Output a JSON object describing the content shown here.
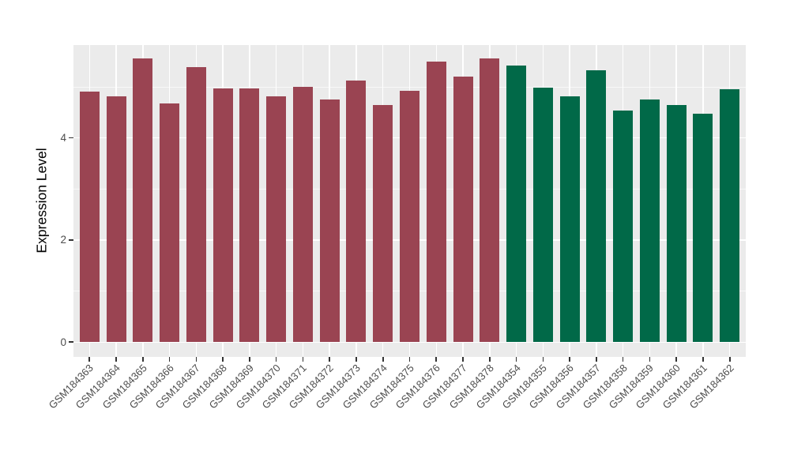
{
  "chart_data": {
    "type": "bar",
    "title": "",
    "xlabel": "",
    "ylabel": "Expression Level",
    "ylim": [
      -0.29,
      5.82
    ],
    "yticks": [
      "0",
      "2",
      "4"
    ],
    "ytick_values": [
      0,
      2,
      4
    ],
    "yminor_values": [
      1,
      3,
      5
    ],
    "grid": true,
    "legend": false,
    "panel_bg": "#EBEBEB",
    "group_colors": {
      "group1": "#9A4452",
      "group2": "#016948"
    },
    "bars": [
      {
        "label": "GSM184363",
        "value": 4.9,
        "color": "#9A4452"
      },
      {
        "label": "GSM184364",
        "value": 4.82,
        "color": "#9A4452"
      },
      {
        "label": "GSM184365",
        "value": 5.55,
        "color": "#9A4452"
      },
      {
        "label": "GSM184366",
        "value": 4.68,
        "color": "#9A4452"
      },
      {
        "label": "GSM184367",
        "value": 5.38,
        "color": "#9A4452"
      },
      {
        "label": "GSM184368",
        "value": 4.97,
        "color": "#9A4452"
      },
      {
        "label": "GSM184369",
        "value": 4.97,
        "color": "#9A4452"
      },
      {
        "label": "GSM184370",
        "value": 4.81,
        "color": "#9A4452"
      },
      {
        "label": "GSM184371",
        "value": 5.0,
        "color": "#9A4452"
      },
      {
        "label": "GSM184372",
        "value": 4.76,
        "color": "#9A4452"
      },
      {
        "label": "GSM184373",
        "value": 5.12,
        "color": "#9A4452"
      },
      {
        "label": "GSM184374",
        "value": 4.64,
        "color": "#9A4452"
      },
      {
        "label": "GSM184375",
        "value": 4.92,
        "color": "#9A4452"
      },
      {
        "label": "GSM184376",
        "value": 5.49,
        "color": "#9A4452"
      },
      {
        "label": "GSM184377",
        "value": 5.2,
        "color": "#9A4452"
      },
      {
        "label": "GSM184378",
        "value": 5.55,
        "color": "#9A4452"
      },
      {
        "label": "GSM184354",
        "value": 5.42,
        "color": "#016948"
      },
      {
        "label": "GSM184355",
        "value": 4.99,
        "color": "#016948"
      },
      {
        "label": "GSM184356",
        "value": 4.81,
        "color": "#016948"
      },
      {
        "label": "GSM184357",
        "value": 5.32,
        "color": "#016948"
      },
      {
        "label": "GSM184358",
        "value": 4.54,
        "color": "#016948"
      },
      {
        "label": "GSM184359",
        "value": 4.75,
        "color": "#016948"
      },
      {
        "label": "GSM184360",
        "value": 4.64,
        "color": "#016948"
      },
      {
        "label": "GSM184361",
        "value": 4.47,
        "color": "#016948"
      },
      {
        "label": "GSM184362",
        "value": 4.95,
        "color": "#016948"
      }
    ]
  }
}
